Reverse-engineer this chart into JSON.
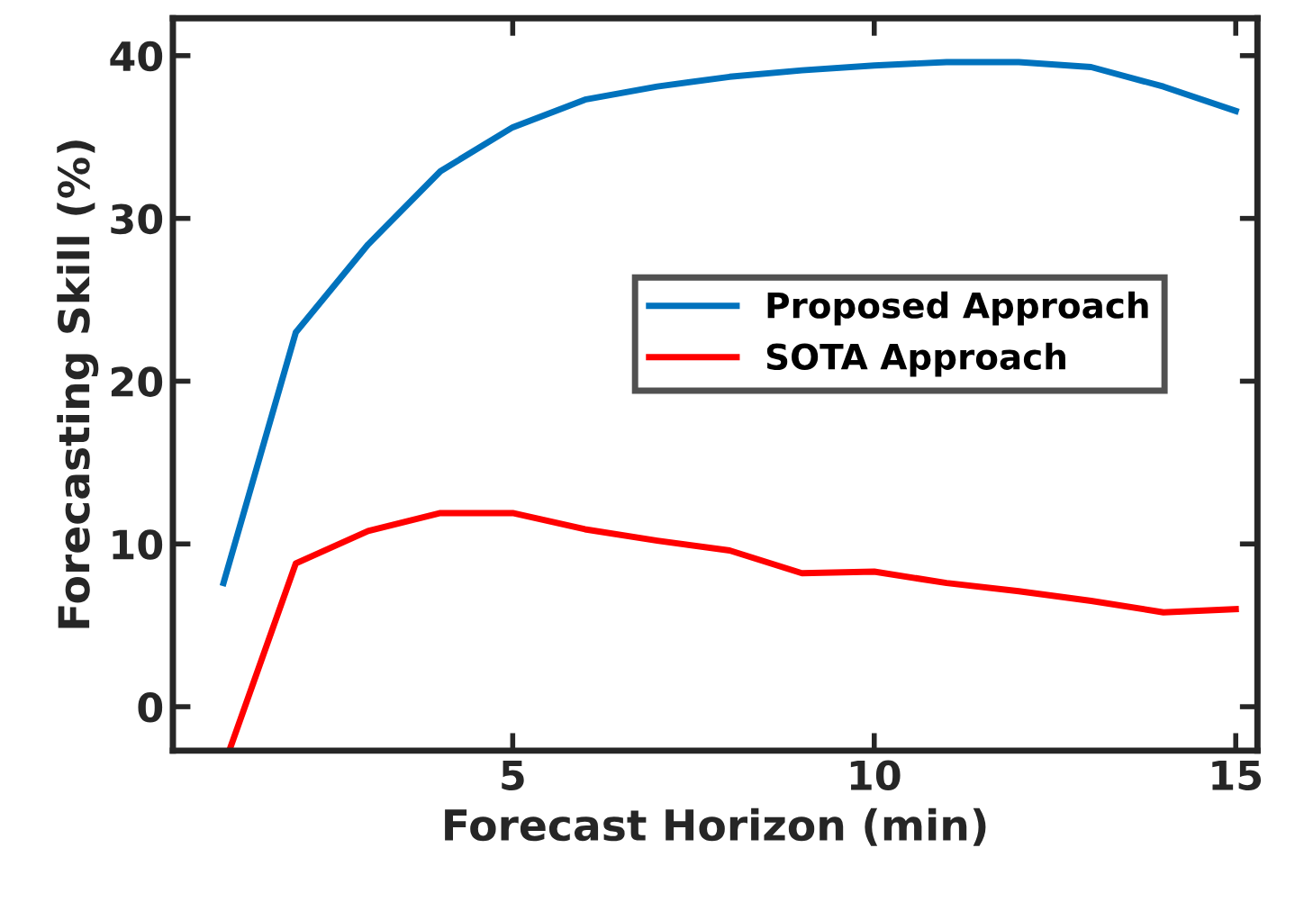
{
  "chart_data": {
    "type": "line",
    "xlabel": "Forecast Horizon (min)",
    "ylabel": "Forecasting Skill (%)",
    "x": [
      1,
      2,
      3,
      4,
      5,
      6,
      7,
      8,
      9,
      10,
      11,
      12,
      13,
      14,
      15
    ],
    "xlim": [
      0.3,
      15.3
    ],
    "xticks": [
      5,
      10,
      15
    ],
    "ylim": [
      -2.7,
      42.3
    ],
    "yticks": [
      0,
      10,
      20,
      30,
      40
    ],
    "series": [
      {
        "name": "Proposed Approach",
        "color": "#0072bd",
        "values": [
          7.6,
          23.0,
          28.4,
          32.9,
          35.6,
          37.3,
          38.1,
          38.7,
          39.1,
          39.4,
          39.6,
          39.6,
          39.3,
          38.1,
          36.6
        ]
      },
      {
        "name": "SOTA Approach",
        "color": "#ff0000",
        "x": [
          1.08,
          2,
          3,
          4,
          5,
          6,
          7,
          8,
          9,
          10,
          11,
          12,
          13,
          14,
          15
        ],
        "values": [
          -2.7,
          8.8,
          10.8,
          11.9,
          11.9,
          10.9,
          10.2,
          9.6,
          8.2,
          8.3,
          7.6,
          7.1,
          6.5,
          5.8,
          6.0
        ]
      }
    ],
    "grid": false,
    "legend": "right",
    "marker": "none",
    "line_style": "solid"
  }
}
